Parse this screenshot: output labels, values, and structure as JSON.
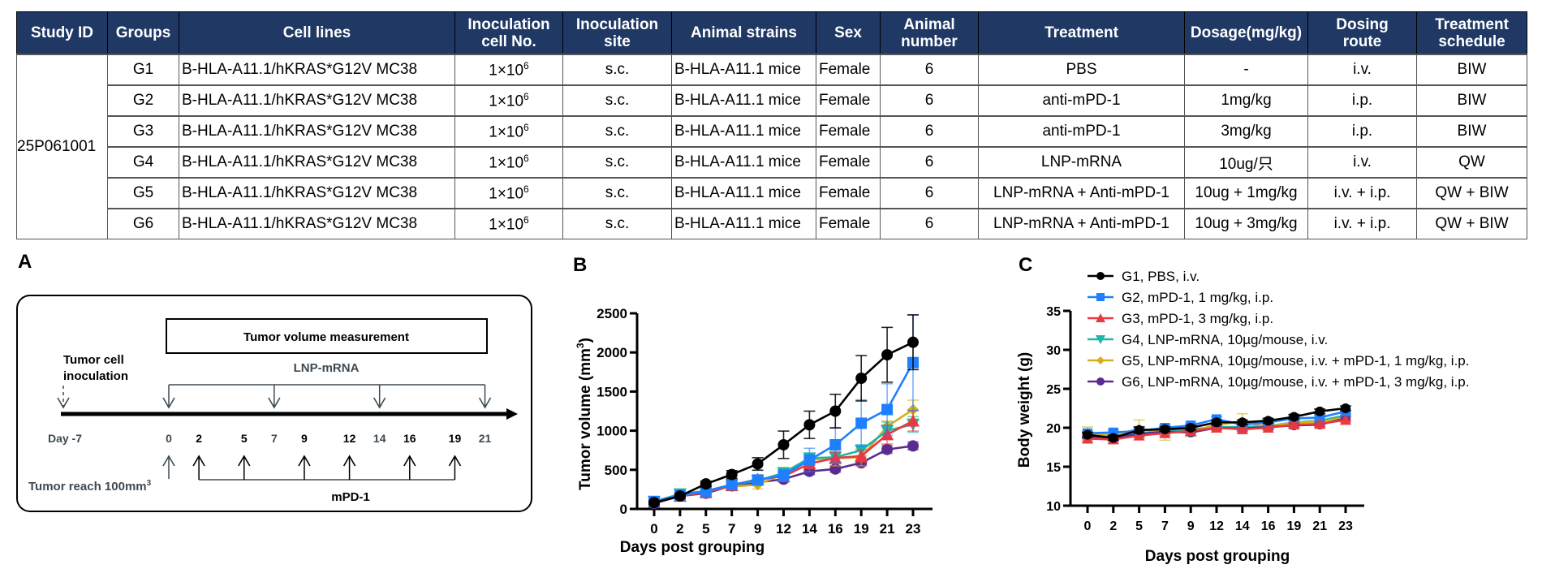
{
  "table": {
    "headers": [
      "Study ID",
      "Groups",
      "Cell lines",
      "Inoculation cell No.",
      "Inoculation site",
      "Animal strains",
      "Sex",
      "Animal number",
      "Treatment",
      "Dosage(mg/kg)",
      "Dosing route",
      "Treatment schedule"
    ],
    "header_lines": [
      [
        "Study ID"
      ],
      [
        "Groups"
      ],
      [
        "Cell lines"
      ],
      [
        "Inoculation",
        "cell No."
      ],
      [
        "Inoculation",
        "site"
      ],
      [
        "Animal strains"
      ],
      [
        "Sex"
      ],
      [
        "Animal",
        "number"
      ],
      [
        "Treatment"
      ],
      [
        "Dosage(mg/kg)"
      ],
      [
        "Dosing",
        "route"
      ],
      [
        "Treatment",
        "schedule"
      ]
    ],
    "study_id": "25P061001",
    "rows": [
      {
        "group": "G1",
        "cell_line": "B-HLA-A11.1/hKRAS*G12V MC38",
        "cell_no_base": "1×10",
        "cell_no_exp": "6",
        "site": "s.c.",
        "strain": "B-HLA-A11.1 mice",
        "sex": "Female",
        "number": "6",
        "treatment": "PBS",
        "dosage": "-",
        "route": "i.v.",
        "schedule": "BIW"
      },
      {
        "group": "G2",
        "cell_line": "B-HLA-A11.1/hKRAS*G12V MC38",
        "cell_no_base": "1×10",
        "cell_no_exp": "6",
        "site": "s.c.",
        "strain": "B-HLA-A11.1 mice",
        "sex": "Female",
        "number": "6",
        "treatment": "anti-mPD-1",
        "dosage": "1mg/kg",
        "route": "i.p.",
        "schedule": "BIW"
      },
      {
        "group": "G3",
        "cell_line": "B-HLA-A11.1/hKRAS*G12V MC38",
        "cell_no_base": "1×10",
        "cell_no_exp": "6",
        "site": "s.c.",
        "strain": "B-HLA-A11.1 mice",
        "sex": "Female",
        "number": "6",
        "treatment": "anti-mPD-1",
        "dosage": "3mg/kg",
        "route": "i.p.",
        "schedule": "BIW"
      },
      {
        "group": "G4",
        "cell_line": "B-HLA-A11.1/hKRAS*G12V MC38",
        "cell_no_base": "1×10",
        "cell_no_exp": "6",
        "site": "s.c.",
        "strain": "B-HLA-A11.1 mice",
        "sex": "Female",
        "number": "6",
        "treatment": "LNP-mRNA",
        "dosage": "10ug/只",
        "route": "i.v.",
        "schedule": "QW"
      },
      {
        "group": "G5",
        "cell_line": "B-HLA-A11.1/hKRAS*G12V MC38",
        "cell_no_base": "1×10",
        "cell_no_exp": "6",
        "site": "s.c.",
        "strain": "B-HLA-A11.1 mice",
        "sex": "Female",
        "number": "6",
        "treatment": "LNP-mRNA  + Anti-mPD-1",
        "dosage": "10ug + 1mg/kg",
        "route": "i.v. + i.p.",
        "schedule": "QW + BIW"
      },
      {
        "group": "G6",
        "cell_line": "B-HLA-A11.1/hKRAS*G12V MC38",
        "cell_no_base": "1×10",
        "cell_no_exp": "6",
        "site": "s.c.",
        "strain": "B-HLA-A11.1 mice",
        "sex": "Female",
        "number": "6",
        "treatment": "LNP-mRNA  + Anti-mPD-1",
        "dosage": "10ug + 3mg/kg",
        "route": "i.v. + i.p.",
        "schedule": "QW + BIW"
      }
    ]
  },
  "panels": {
    "a": "A",
    "b": "B",
    "c": "C"
  },
  "diagram": {
    "measurement_label": "Tumor volume measurement",
    "inoculation_label_1": "Tumor cell",
    "inoculation_label_2": "inoculation",
    "lnp_label": "LNP-mRNA",
    "mpd1_label": "mPD-1",
    "tumor_reach_label": "Tumor reach 100mm",
    "tumor_reach_sup": "3",
    "day_labels": [
      {
        "text": "Day -7",
        "day": -7
      },
      {
        "text": "0",
        "day": 0
      },
      {
        "text": "2",
        "day": 2
      },
      {
        "text": "5",
        "day": 5
      },
      {
        "text": "7",
        "day": 7
      },
      {
        "text": "9",
        "day": 9
      },
      {
        "text": "12",
        "day": 12
      },
      {
        "text": "14",
        "day": 14
      },
      {
        "text": "16",
        "day": 16
      },
      {
        "text": "19",
        "day": 19
      },
      {
        "text": "21",
        "day": 21
      }
    ],
    "lnp_days": [
      0,
      7,
      14,
      21
    ],
    "mpd1_days": [
      2,
      5,
      9,
      12,
      16,
      19
    ],
    "grouping_day": 0,
    "inoculation_day": -7
  },
  "legend": [
    {
      "label": "G1, PBS, i.v.",
      "color": "#000000",
      "marker": "circle"
    },
    {
      "label": "G2, mPD-1, 1 mg/kg, i.p.",
      "color": "#1E7FFF",
      "marker": "square"
    },
    {
      "label": "G3, mPD-1, 3 mg/kg, i.p.",
      "color": "#E8393F",
      "marker": "triangle-up"
    },
    {
      "label": "G4, LNP-mRNA, 10µg/mouse, i.v.",
      "color": "#1FB5AA",
      "marker": "triangle-down"
    },
    {
      "label": "G5, LNP-mRNA, 10µg/mouse, i.v. + mPD-1, 1 mg/kg, i.p.",
      "color": "#D4AF1A",
      "marker": "diamond"
    },
    {
      "label": "G6, LNP-mRNA, 10µg/mouse, i.v. + mPD-1, 3 mg/kg, i.p.",
      "color": "#5B2C8F",
      "marker": "circle"
    }
  ],
  "chart_data": [
    {
      "id": "B",
      "type": "line",
      "title": "",
      "xlabel": "Days post grouping",
      "ylabel": "Tumor volume (mm3)",
      "ylabel_main": "Tumor volume (mm",
      "ylabel_sup": "3",
      "ylabel_close": ")",
      "categories": [
        "0",
        "2",
        "5",
        "7",
        "9",
        "12",
        "14",
        "16",
        "19",
        "21",
        "23"
      ],
      "ylim": [
        0,
        2500
      ],
      "yticks": [
        0,
        500,
        1000,
        1500,
        2000,
        2500
      ],
      "grid": false,
      "series": [
        {
          "name": "G1",
          "values": [
            80,
            165,
            320,
            440,
            575,
            820,
            1075,
            1250,
            1670,
            1970,
            2130
          ],
          "errors": [
            20,
            25,
            35,
            50,
            80,
            175,
            175,
            215,
            290,
            350,
            350
          ]
        },
        {
          "name": "G2",
          "values": [
            95,
            175,
            225,
            310,
            370,
            430,
            625,
            820,
            1095,
            1270,
            1870
          ],
          "errors": [
            20,
            25,
            30,
            40,
            50,
            70,
            150,
            220,
            300,
            330,
            610
          ]
        },
        {
          "name": "G3",
          "values": [
            85,
            165,
            210,
            300,
            380,
            415,
            580,
            650,
            675,
            950,
            1125
          ],
          "errors": [
            15,
            20,
            25,
            35,
            40,
            50,
            60,
            70,
            80,
            120,
            130
          ]
        },
        {
          "name": "G4",
          "values": [
            95,
            190,
            230,
            310,
            360,
            460,
            650,
            660,
            750,
            1000,
            1080
          ],
          "errors": [
            15,
            20,
            25,
            30,
            40,
            60,
            60,
            70,
            70,
            110,
            100
          ]
        },
        {
          "name": "G5",
          "values": [
            80,
            175,
            220,
            285,
            310,
            450,
            630,
            650,
            660,
            1055,
            1270
          ],
          "errors": [
            15,
            20,
            25,
            45,
            55,
            80,
            60,
            100,
            110,
            70,
            120
          ]
        },
        {
          "name": "G6",
          "values": [
            70,
            165,
            200,
            295,
            340,
            380,
            480,
            510,
            590,
            760,
            805
          ],
          "errors": [
            15,
            20,
            20,
            30,
            35,
            35,
            40,
            40,
            40,
            50,
            50
          ]
        }
      ]
    },
    {
      "id": "C",
      "type": "line",
      "title": "",
      "xlabel": "Days post grouping",
      "ylabel": "Body weight (g)",
      "categories": [
        "0",
        "2",
        "5",
        "7",
        "9",
        "12",
        "14",
        "16",
        "19",
        "21",
        "23"
      ],
      "ylim": [
        10,
        35
      ],
      "yticks": [
        10,
        15,
        20,
        25,
        30,
        35
      ],
      "grid": false,
      "legend_position": "top-right",
      "series": [
        {
          "name": "G1",
          "values": [
            19.1,
            18.7,
            19.7,
            19.8,
            20.0,
            20.7,
            20.7,
            20.9,
            21.4,
            22.1,
            22.5
          ],
          "errors": [
            0.3,
            0.3,
            0.4,
            0.3,
            0.3,
            0.3,
            0.3,
            0.3,
            0.3,
            0.3,
            0.3
          ]
        },
        {
          "name": "G2",
          "values": [
            19.3,
            19.4,
            19.6,
            20.0,
            20.3,
            21.1,
            20.4,
            20.7,
            21.2,
            21.3,
            22.1
          ],
          "errors": [
            0.3,
            0.3,
            0.3,
            0.3,
            0.3,
            0.3,
            0.3,
            0.3,
            0.3,
            0.3,
            0.3
          ]
        },
        {
          "name": "G3",
          "values": [
            18.6,
            18.5,
            19.0,
            19.3,
            19.6,
            20.0,
            19.8,
            20.0,
            20.4,
            20.5,
            21.0
          ],
          "errors": [
            0.3,
            0.3,
            0.3,
            0.3,
            0.3,
            0.3,
            0.3,
            0.3,
            0.3,
            0.3,
            0.3
          ]
        },
        {
          "name": "G4",
          "values": [
            18.9,
            18.9,
            19.3,
            19.6,
            19.8,
            20.1,
            20.1,
            20.2,
            20.7,
            20.9,
            21.6
          ],
          "errors": [
            0.3,
            0.3,
            0.3,
            0.3,
            0.3,
            0.3,
            0.3,
            0.3,
            0.3,
            0.3,
            0.3
          ]
        },
        {
          "name": "G5",
          "values": [
            19.3,
            19.0,
            19.9,
            19.4,
            19.5,
            20.4,
            20.8,
            20.1,
            20.7,
            20.8,
            21.3
          ],
          "errors": [
            0.8,
            0.3,
            1.1,
            1.0,
            0.6,
            0.3,
            1.0,
            0.4,
            0.3,
            0.3,
            0.3
          ]
        },
        {
          "name": "G6",
          "values": [
            18.9,
            18.7,
            19.2,
            19.5,
            19.4,
            20.0,
            19.9,
            20.1,
            20.3,
            20.4,
            21.2
          ],
          "errors": [
            0.3,
            0.3,
            0.3,
            0.3,
            0.4,
            0.3,
            0.3,
            0.3,
            0.3,
            0.3,
            0.3
          ]
        }
      ]
    }
  ]
}
